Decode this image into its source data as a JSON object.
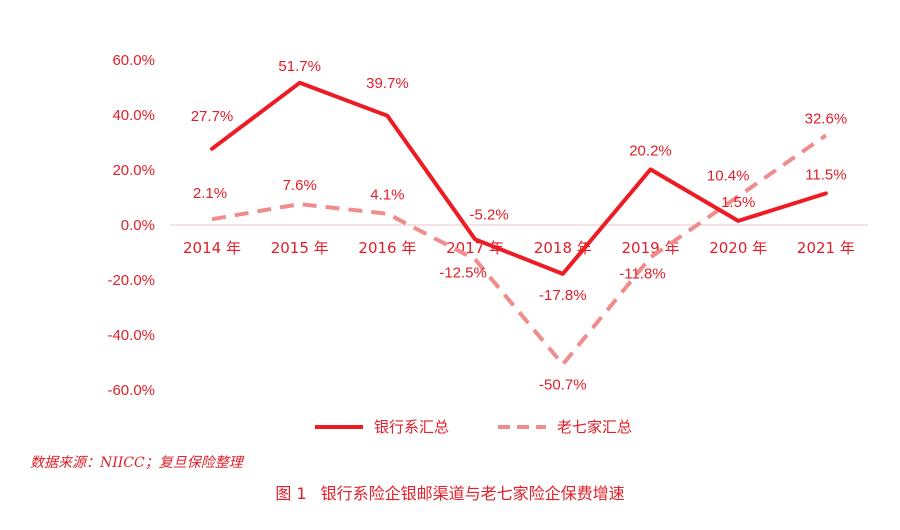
{
  "chart_data": {
    "type": "line",
    "categories": [
      "2014 年",
      "2015 年",
      "2016 年",
      "2017 年",
      "2018 年",
      "2019 年",
      "2020 年",
      "2021 年"
    ],
    "y_ticks": [
      "60.0%",
      "40.0%",
      "20.0%",
      "0.0%",
      "-20.0%",
      "-40.0%",
      "-60.0%"
    ],
    "ylim": [
      -60,
      60
    ],
    "grid": false,
    "legend_placement": "bottom",
    "series": [
      {
        "name": "银行系汇总",
        "values": [
          27.7,
          51.7,
          39.7,
          -5.2,
          -17.8,
          20.2,
          1.5,
          11.5
        ],
        "labels": [
          "27.7%",
          "51.7%",
          "39.7%",
          "-5.2%",
          "-17.8%",
          "20.2%",
          "1.5%",
          "11.5%"
        ],
        "color": "#ed1c24",
        "style": "solid"
      },
      {
        "name": "老七家汇总",
        "values": [
          2.1,
          7.6,
          4.1,
          -12.5,
          -50.7,
          -11.8,
          10.4,
          32.6
        ],
        "labels": [
          "2.1%",
          "7.6%",
          "4.1%",
          "-12.5%",
          "-50.7%",
          "-11.8%",
          "10.4%",
          "32.6%"
        ],
        "color": "#f08c8c",
        "style": "dashed"
      }
    ]
  },
  "source_note": "数据来源：NIICC；复旦保险整理",
  "caption": {
    "number": "图 1",
    "title": "银行系险企银邮渠道与老七家险企保费增速"
  }
}
